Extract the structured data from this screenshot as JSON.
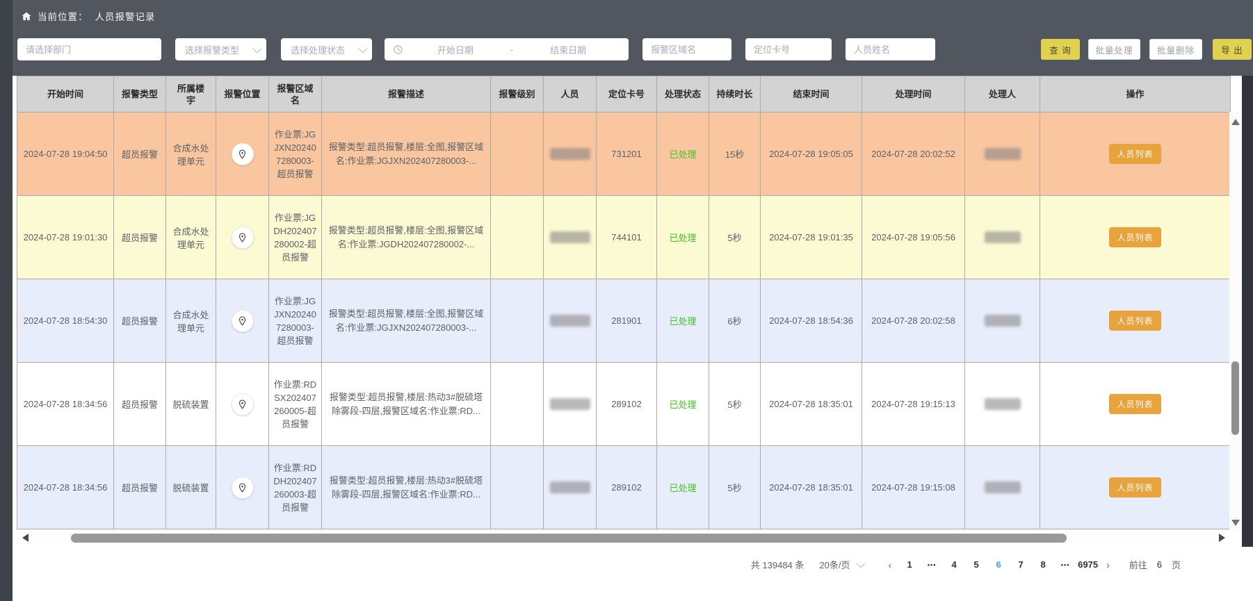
{
  "breadcrumb": {
    "prefix": "当前位置：",
    "current": "人员报警记录"
  },
  "filters": {
    "department_placeholder": "请选择部门",
    "alarm_type_placeholder": "选择报警类型",
    "status_placeholder": "选择处理状态",
    "start_date_placeholder": "开始日期",
    "date_separator": "-",
    "end_date_placeholder": "结束日期",
    "area_placeholder": "报警区域名",
    "card_placeholder": "定位卡号",
    "name_placeholder": "人员姓名"
  },
  "buttons": {
    "query": "查 询",
    "batch_process": "批量处理",
    "batch_delete": "批量删除",
    "export": "导 出"
  },
  "icons": {
    "home": "home-icon",
    "clock": "clock-icon",
    "pin": "location-pin-icon",
    "chevron": "chevron-down-icon"
  },
  "table": {
    "columns": [
      "开始时间",
      "报警类型",
      "所属楼宇",
      "报警位置",
      "报警区域名",
      "报警描述",
      "报警级别",
      "人员",
      "定位卡号",
      "处理状态",
      "持续时长",
      "结束时间",
      "处理时间",
      "处理人",
      "操作"
    ],
    "rows": [
      {
        "bg": "salmon",
        "start_time": "2024-07-28 19:04:50",
        "alarm_type": "超员报警",
        "building": "合成水处理单元",
        "area_name": "作业票:JGJXN202407280003-超员报警",
        "description": "报警类型:超员报警,楼层:全图,报警区域名:作业票:JGJXN202407280003-...",
        "level": "",
        "person_blurred": true,
        "card_no": "731201",
        "status": "已处理",
        "duration": "15秒",
        "end_time": "2024-07-28 19:05:05",
        "handle_time": "2024-07-28 20:02:52",
        "handler_blurred": true,
        "action": "人员列表"
      },
      {
        "bg": "yellow",
        "start_time": "2024-07-28 19:01:30",
        "alarm_type": "超员报警",
        "building": "合成水处理单元",
        "area_name": "作业票:JGDH202407280002-超员报警",
        "description": "报警类型:超员报警,楼层:全图,报警区域名:作业票:JGDH202407280002-...",
        "level": "",
        "person_blurred": true,
        "card_no": "744101",
        "status": "已处理",
        "duration": "5秒",
        "end_time": "2024-07-28 19:01:35",
        "handle_time": "2024-07-28 19:05:56",
        "handler_blurred": true,
        "action": "人员列表"
      },
      {
        "bg": "blue",
        "start_time": "2024-07-28 18:54:30",
        "alarm_type": "超员报警",
        "building": "合成水处理单元",
        "area_name": "作业票:JGJXN202407280003-超员报警",
        "description": "报警类型:超员报警,楼层:全图,报警区域名:作业票:JGJXN202407280003-...",
        "level": "",
        "person_blurred": true,
        "card_no": "281901",
        "status": "已处理",
        "duration": "6秒",
        "end_time": "2024-07-28 18:54:36",
        "handle_time": "2024-07-28 20:02:58",
        "handler_blurred": true,
        "action": "人员列表"
      },
      {
        "bg": "white",
        "start_time": "2024-07-28 18:34:56",
        "alarm_type": "超员报警",
        "building": "脱硫装置",
        "area_name": "作业票:RDSX202407260005-超员报警",
        "description": "报警类型:超员报警,楼层:热动3#脱硫塔除雾段-四层,报警区域名:作业票:RD...",
        "level": "",
        "person_blurred": true,
        "card_no": "289102",
        "status": "已处理",
        "duration": "5秒",
        "end_time": "2024-07-28 18:35:01",
        "handle_time": "2024-07-28 19:15:13",
        "handler_blurred": true,
        "action": "人员列表"
      },
      {
        "bg": "blue",
        "start_time": "2024-07-28 18:34:56",
        "alarm_type": "超员报警",
        "building": "脱硫装置",
        "area_name": "作业票:RDDH202407260003-超员报警",
        "description": "报警类型:超员报警,楼层:热动3#脱硫塔除雾段-四层,报警区域名:作业票:RD...",
        "level": "",
        "person_blurred": true,
        "card_no": "289102",
        "status": "已处理",
        "duration": "5秒",
        "end_time": "2024-07-28 18:35:01",
        "handle_time": "2024-07-28 19:15:08",
        "handler_blurred": true,
        "action": "人员列表"
      }
    ]
  },
  "pagination": {
    "total": "共 139484 条",
    "page_size": "20条/页",
    "prev": "‹",
    "next": "›",
    "pages": [
      "1",
      "...",
      "4",
      "5",
      "6",
      "7",
      "8",
      "...",
      "6975"
    ],
    "current_page": "6",
    "goto_prefix": "前往",
    "goto_value": "6",
    "goto_suffix": "页"
  },
  "colors": {
    "topbar_bg": "#52565e",
    "header_bg": "#d3d3d3",
    "accent_blue": "#409eff",
    "status_green": "#3fc421",
    "action_orange": "#e8a33d",
    "button_yellow": "#e0d150",
    "row_colors": {
      "salmon": "#f9c6a0",
      "yellow": "#fbfad2",
      "blue": "#e8edfb",
      "white": "#ffffff"
    }
  }
}
